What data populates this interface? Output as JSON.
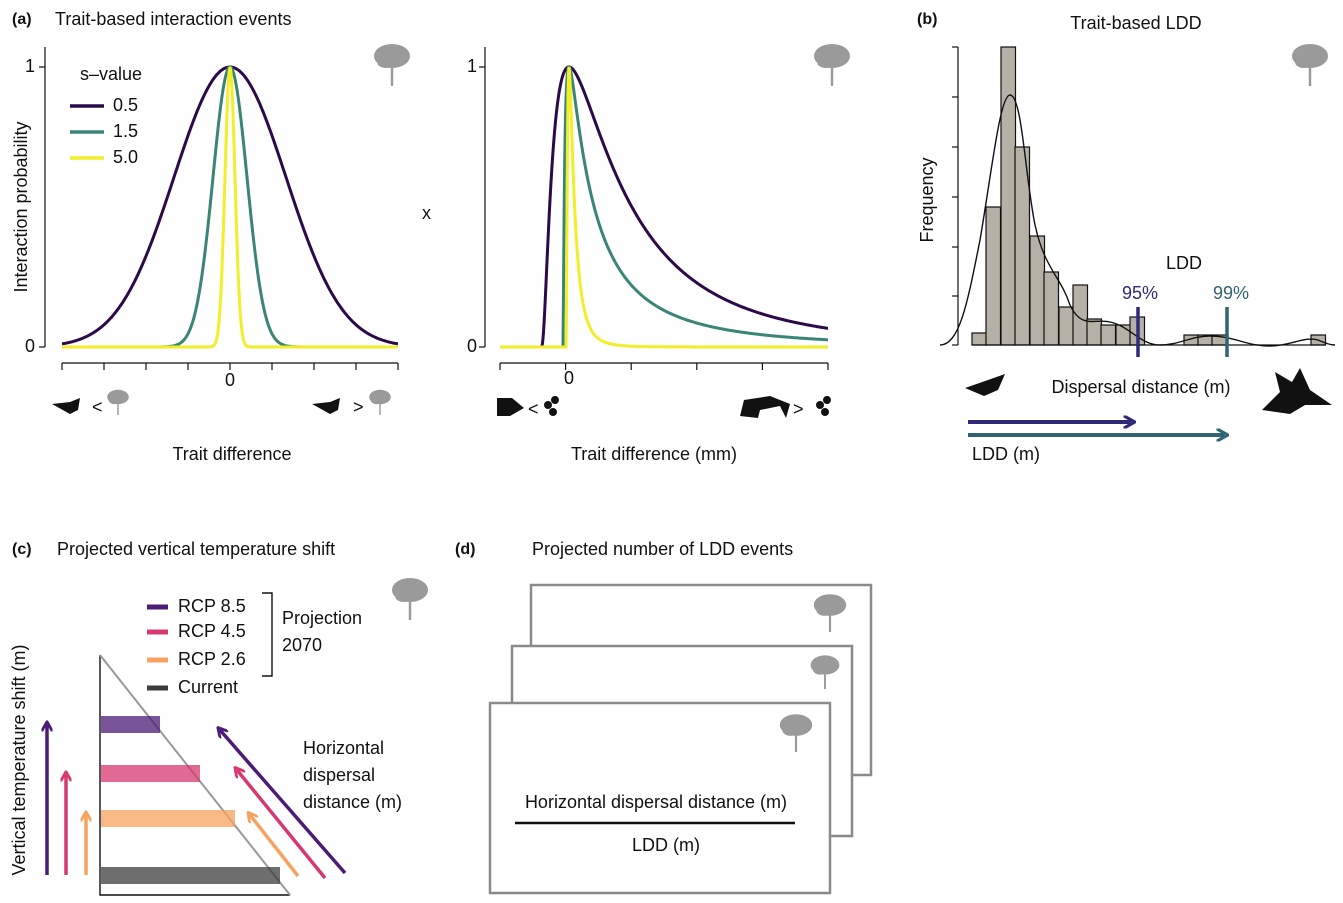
{
  "panel_a": {
    "label": "(a)",
    "title": "Trait-based interaction events",
    "y_label": "Interaction probability",
    "left_y_ticks": [
      "1",
      "0"
    ],
    "left_x_tick": "0",
    "left_x_label": "Trait difference",
    "legend_title": "s–value",
    "legend": [
      "0.5",
      "1.5",
      "5.0"
    ],
    "operator": "x",
    "right_y_ticks": [
      "1",
      "0"
    ],
    "right_x_tick": "0",
    "right_x_label": "Trait difference (mm)"
  },
  "panel_b": {
    "label": "(b)",
    "title": "Trait-based LDD",
    "y_label": "Frequency",
    "ldd": "LDD",
    "p95": "95%",
    "p99": "99%",
    "x_label": "Dispersal distance (m)",
    "arrow_label": "LDD (m)"
  },
  "panel_c": {
    "label": "(c)",
    "title": "Projected vertical temperature shift",
    "y_label": "Vertical temperature shift (m)",
    "legend": [
      "RCP 8.5",
      "RCP 4.5",
      "RCP 2.6",
      "Current"
    ],
    "bracket": [
      "Projection",
      "2070"
    ],
    "arrow_label": [
      "Horizontal",
      "dispersal",
      "distance (m)"
    ]
  },
  "panel_d": {
    "label": "(d)",
    "title": "Projected number of LDD events",
    "numerator": "Horizontal dispersal distance (m)",
    "denominator": "LDD (m)"
  }
}
